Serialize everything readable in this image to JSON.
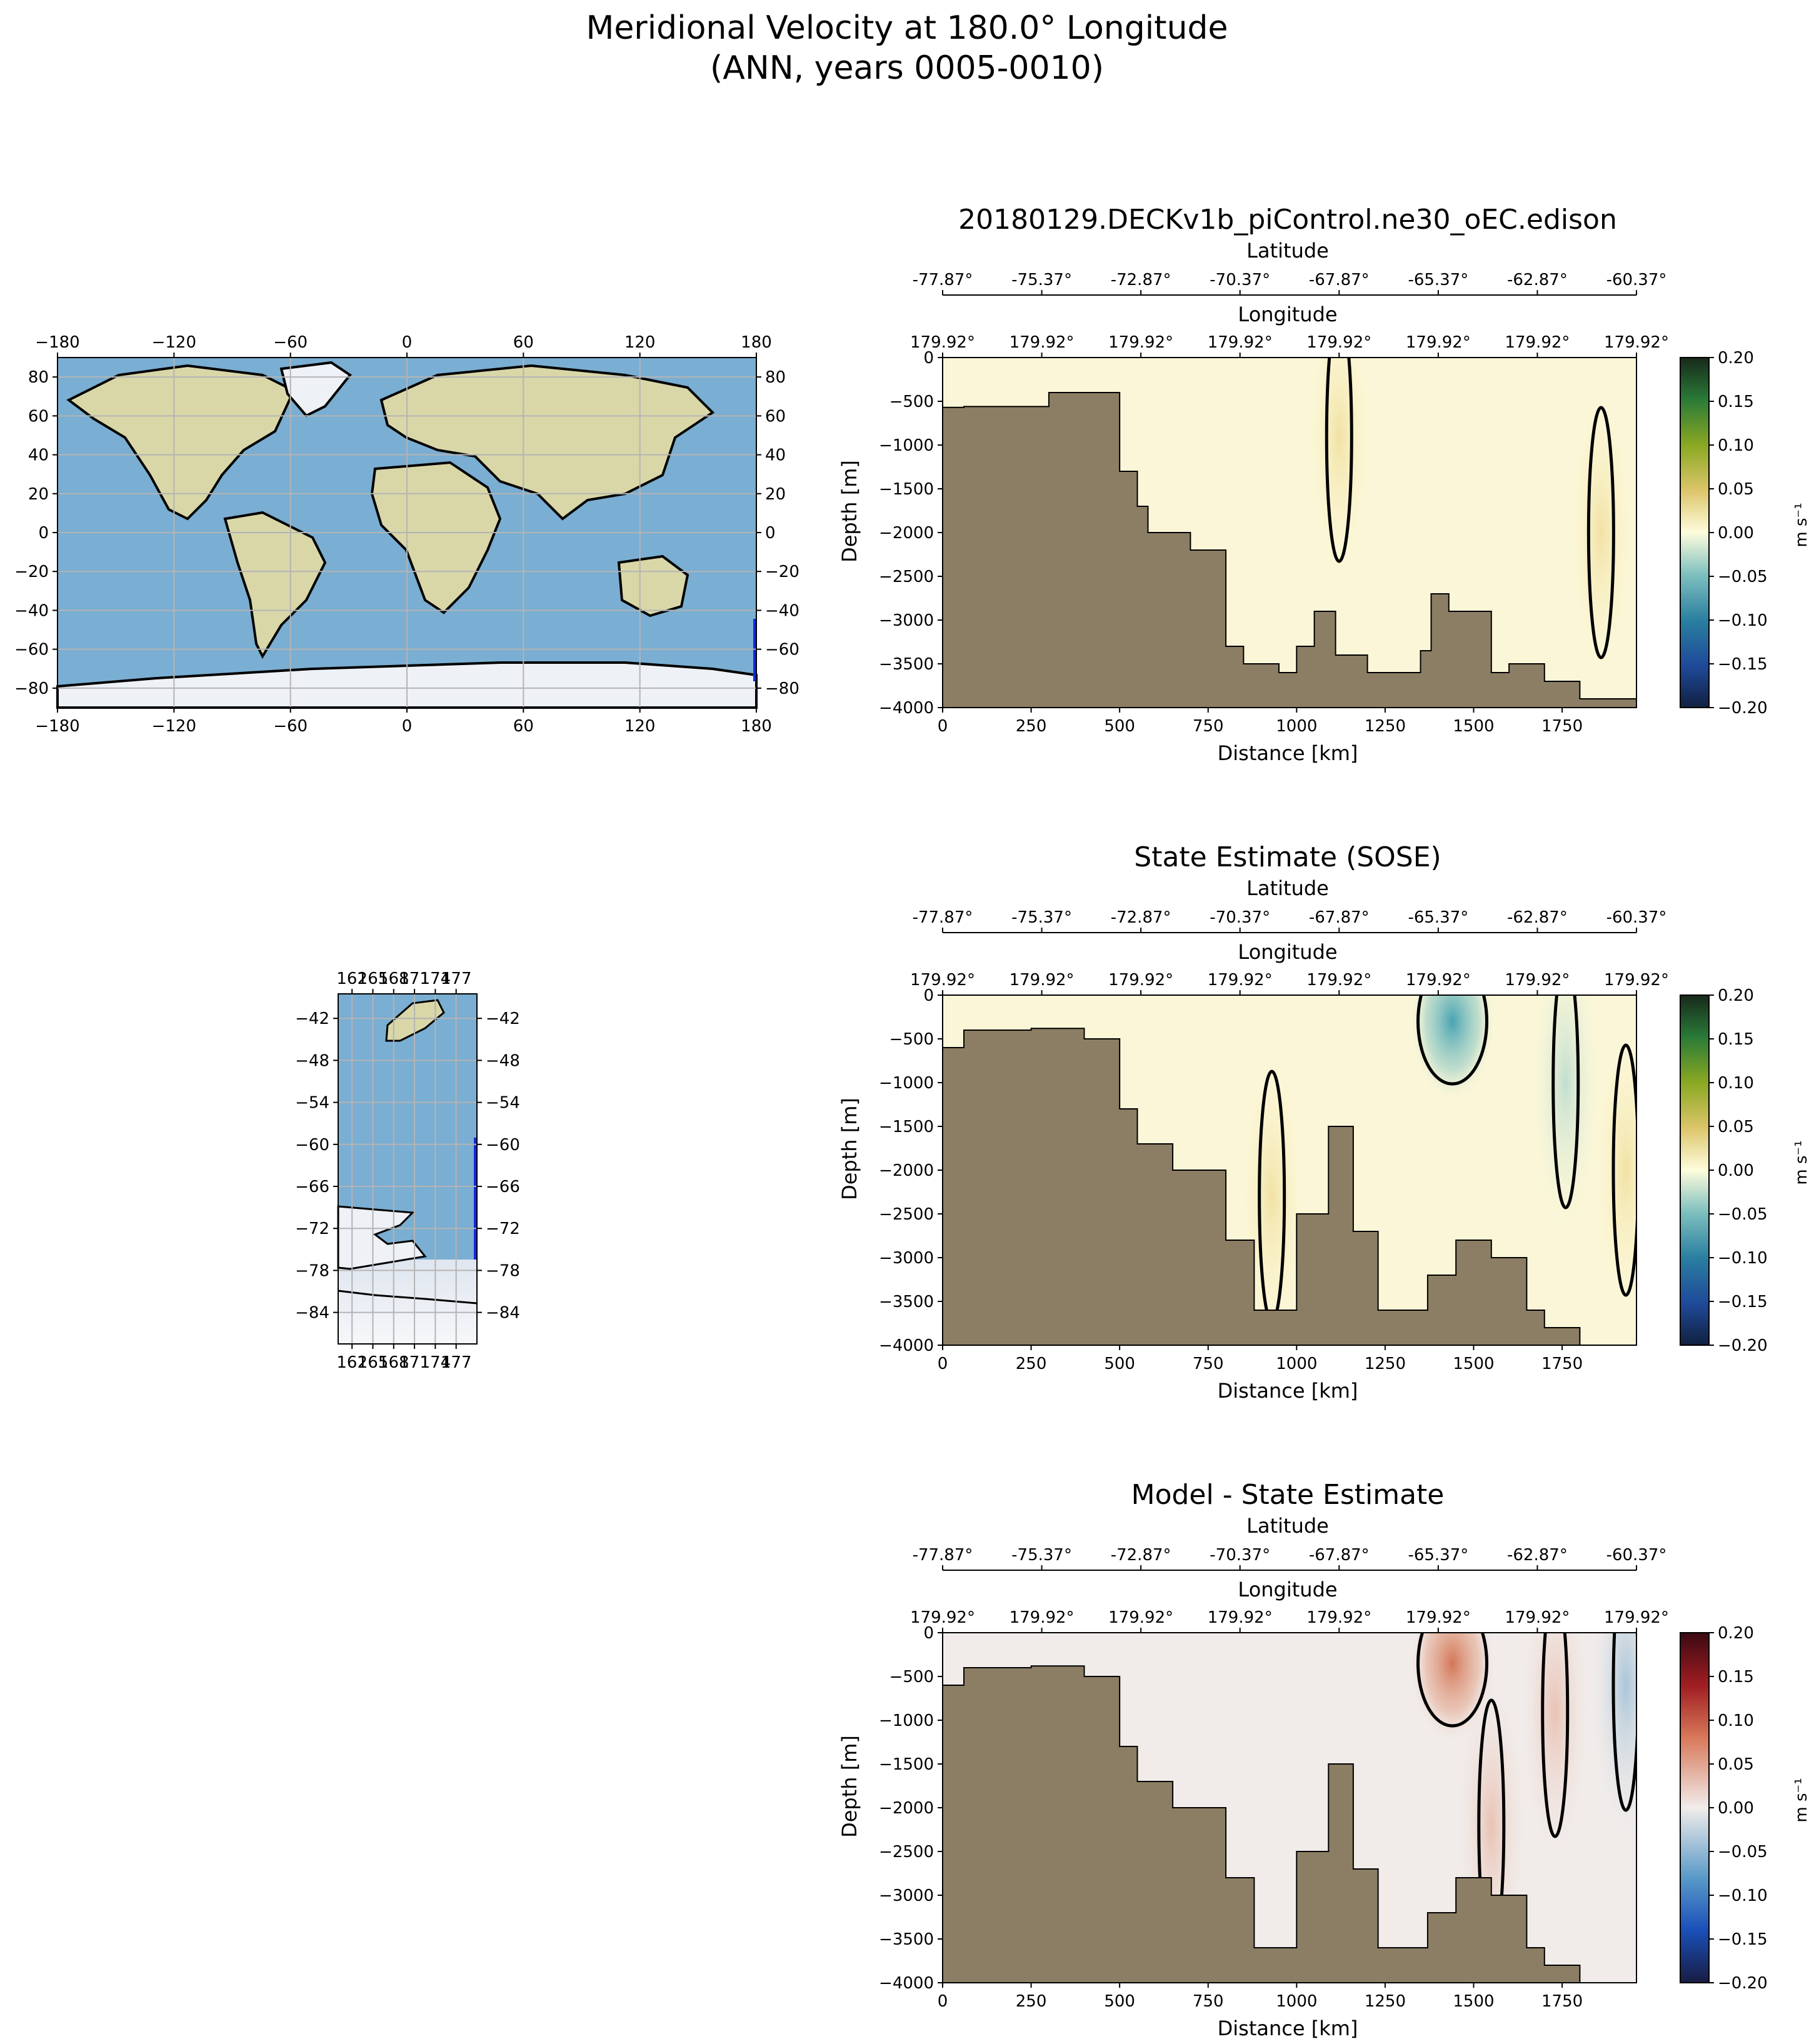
{
  "figure": {
    "title_line1": "Meridional Velocity at 180.0° Longitude",
    "title_line2": "(ANN, years 0005-0010)"
  },
  "colors": {
    "bathymetry": "#8c7e64",
    "ocean": "#7aaed2",
    "land": "#d9d7a8",
    "ice": "#eef1f6",
    "transect": "#1428e6",
    "grid": "#b4b4b4"
  },
  "world_map": {
    "lon_ticks": [
      "−180",
      "−120",
      "−60",
      "0",
      "60",
      "120",
      "180"
    ],
    "lat_ticks": [
      "80",
      "60",
      "40",
      "20",
      "0",
      "−20",
      "−40",
      "−60",
      "−80"
    ]
  },
  "inset_map": {
    "lon_ticks": [
      "162",
      "165",
      "168",
      "171",
      "174",
      "177"
    ],
    "lat_ticks": [
      "−42",
      "−48",
      "−54",
      "−60",
      "−66",
      "−72",
      "−78",
      "−84"
    ]
  },
  "chart_data": [
    {
      "type": "heatmap",
      "title": "20180129.DECKv1b_piControl.ne30_oEC.edison",
      "xlabel": "Distance [km]",
      "ylabel": "Depth [m]",
      "top_axis1_label": "Latitude",
      "top_axis2_label": "Longitude",
      "latitude_ticks": [
        "-77.87°",
        "-75.37°",
        "-72.87°",
        "-70.37°",
        "-67.87°",
        "-65.37°",
        "-62.87°",
        "-60.37°"
      ],
      "longitude_ticks": [
        "179.92°",
        "179.92°",
        "179.92°",
        "179.92°",
        "179.92°",
        "179.92°",
        "179.92°",
        "179.92°"
      ],
      "xlim": [
        0,
        1960
      ],
      "ylim": [
        -4000,
        0
      ],
      "x_ticks": [
        0,
        250,
        500,
        750,
        1000,
        1250,
        1500,
        1750
      ],
      "y_ticks": [
        0,
        -500,
        -1000,
        -1500,
        -2000,
        -2500,
        -3000,
        -3500,
        -4000
      ],
      "colorbar": {
        "label": "m s⁻¹",
        "ticks": [
          "0.20",
          "0.15",
          "0.10",
          "0.05",
          "0.00",
          "−0.05",
          "−0.10",
          "−0.15",
          "−0.20"
        ],
        "colormap": "delta",
        "range": [
          -0.2,
          0.2
        ]
      },
      "contour_level": 0.0,
      "bathymetry_depth_m": [
        [
          0,
          -570
        ],
        [
          60,
          -570
        ],
        [
          60,
          -560
        ],
        [
          300,
          -560
        ],
        [
          300,
          -400
        ],
        [
          500,
          -400
        ],
        [
          500,
          -1300
        ],
        [
          550,
          -1300
        ],
        [
          550,
          -1700
        ],
        [
          580,
          -1700
        ],
        [
          580,
          -2000
        ],
        [
          700,
          -2000
        ],
        [
          700,
          -2200
        ],
        [
          800,
          -2200
        ],
        [
          800,
          -3300
        ],
        [
          850,
          -3300
        ],
        [
          850,
          -3500
        ],
        [
          950,
          -3500
        ],
        [
          950,
          -3600
        ],
        [
          1000,
          -3600
        ],
        [
          1000,
          -3300
        ],
        [
          1050,
          -3300
        ],
        [
          1050,
          -2900
        ],
        [
          1110,
          -2900
        ],
        [
          1110,
          -3400
        ],
        [
          1200,
          -3400
        ],
        [
          1200,
          -3600
        ],
        [
          1350,
          -3600
        ],
        [
          1350,
          -3350
        ],
        [
          1380,
          -3350
        ],
        [
          1380,
          -2700
        ],
        [
          1430,
          -2700
        ],
        [
          1430,
          -2900
        ],
        [
          1550,
          -2900
        ],
        [
          1550,
          -3600
        ],
        [
          1600,
          -3600
        ],
        [
          1600,
          -3500
        ],
        [
          1700,
          -3500
        ],
        [
          1700,
          -3700
        ],
        [
          1800,
          -3700
        ],
        [
          1800,
          -3900
        ],
        [
          1960,
          -3900
        ]
      ],
      "velocity_features": [
        {
          "distance_km": 1120,
          "depth_m": -900,
          "value": 0.0
        },
        {
          "distance_km": 1860,
          "depth_m": -2000,
          "value": 0.03
        }
      ]
    },
    {
      "type": "heatmap",
      "title": "State Estimate (SOSE)",
      "xlabel": "Distance [km]",
      "ylabel": "Depth [m]",
      "top_axis1_label": "Latitude",
      "top_axis2_label": "Longitude",
      "latitude_ticks": [
        "-77.87°",
        "-75.37°",
        "-72.87°",
        "-70.37°",
        "-67.87°",
        "-65.37°",
        "-62.87°",
        "-60.37°"
      ],
      "longitude_ticks": [
        "179.92°",
        "179.92°",
        "179.92°",
        "179.92°",
        "179.92°",
        "179.92°",
        "179.92°",
        "179.92°"
      ],
      "xlim": [
        0,
        1960
      ],
      "ylim": [
        -4000,
        0
      ],
      "x_ticks": [
        0,
        250,
        500,
        750,
        1000,
        1250,
        1500,
        1750
      ],
      "y_ticks": [
        0,
        -500,
        -1000,
        -1500,
        -2000,
        -2500,
        -3000,
        -3500,
        -4000
      ],
      "colorbar": {
        "label": "m s⁻¹",
        "ticks": [
          "0.20",
          "0.15",
          "0.10",
          "0.05",
          "0.00",
          "−0.05",
          "−0.10",
          "−0.15",
          "−0.20"
        ],
        "colormap": "delta",
        "range": [
          -0.2,
          0.2
        ]
      },
      "contour_level": 0.0,
      "bathymetry_depth_m": [
        [
          0,
          -600
        ],
        [
          60,
          -600
        ],
        [
          60,
          -400
        ],
        [
          250,
          -400
        ],
        [
          250,
          -380
        ],
        [
          400,
          -380
        ],
        [
          400,
          -500
        ],
        [
          500,
          -500
        ],
        [
          500,
          -1300
        ],
        [
          550,
          -1300
        ],
        [
          550,
          -1700
        ],
        [
          650,
          -1700
        ],
        [
          650,
          -2000
        ],
        [
          800,
          -2000
        ],
        [
          800,
          -2800
        ],
        [
          880,
          -2800
        ],
        [
          880,
          -3600
        ],
        [
          1000,
          -3600
        ],
        [
          1000,
          -2500
        ],
        [
          1090,
          -2500
        ],
        [
          1090,
          -1500
        ],
        [
          1160,
          -1500
        ],
        [
          1160,
          -2700
        ],
        [
          1230,
          -2700
        ],
        [
          1230,
          -3600
        ],
        [
          1370,
          -3600
        ],
        [
          1370,
          -3200
        ],
        [
          1450,
          -3200
        ],
        [
          1450,
          -2800
        ],
        [
          1550,
          -2800
        ],
        [
          1550,
          -3000
        ],
        [
          1650,
          -3000
        ],
        [
          1650,
          -3600
        ],
        [
          1700,
          -3600
        ],
        [
          1700,
          -3800
        ],
        [
          1800,
          -3800
        ],
        [
          1800,
          -4000
        ],
        [
          1960,
          -4000
        ]
      ],
      "velocity_features": [
        {
          "distance_km": 1440,
          "depth_m": -300,
          "value": -0.08
        },
        {
          "distance_km": 1760,
          "depth_m": -1000,
          "value": -0.04
        },
        {
          "distance_km": 930,
          "depth_m": -2300,
          "value": 0.03
        },
        {
          "distance_km": 1930,
          "depth_m": -2000,
          "value": 0.04
        }
      ]
    },
    {
      "type": "heatmap",
      "title": "Model - State Estimate",
      "xlabel": "Distance [km]",
      "ylabel": "Depth [m]",
      "top_axis1_label": "Latitude",
      "top_axis2_label": "Longitude",
      "latitude_ticks": [
        "-77.87°",
        "-75.37°",
        "-72.87°",
        "-70.37°",
        "-67.87°",
        "-65.37°",
        "-62.87°",
        "-60.37°"
      ],
      "longitude_ticks": [
        "179.92°",
        "179.92°",
        "179.92°",
        "179.92°",
        "179.92°",
        "179.92°",
        "179.92°",
        "179.92°"
      ],
      "xlim": [
        0,
        1960
      ],
      "ylim": [
        -4000,
        0
      ],
      "x_ticks": [
        0,
        250,
        500,
        750,
        1000,
        1250,
        1500,
        1750
      ],
      "y_ticks": [
        0,
        -500,
        -1000,
        -1500,
        -2000,
        -2500,
        -3000,
        -3500,
        -4000
      ],
      "colorbar": {
        "label": "m s⁻¹",
        "ticks": [
          "0.20",
          "0.15",
          "0.10",
          "0.05",
          "0.00",
          "−0.05",
          "−0.10",
          "−0.15",
          "−0.20"
        ],
        "colormap": "balance",
        "range": [
          -0.2,
          0.2
        ]
      },
      "contour_level": 0.0,
      "bathymetry_depth_m": [
        [
          0,
          -600
        ],
        [
          60,
          -600
        ],
        [
          60,
          -400
        ],
        [
          250,
          -400
        ],
        [
          250,
          -380
        ],
        [
          400,
          -380
        ],
        [
          400,
          -500
        ],
        [
          500,
          -500
        ],
        [
          500,
          -1300
        ],
        [
          550,
          -1300
        ],
        [
          550,
          -1700
        ],
        [
          650,
          -1700
        ],
        [
          650,
          -2000
        ],
        [
          800,
          -2000
        ],
        [
          800,
          -2800
        ],
        [
          880,
          -2800
        ],
        [
          880,
          -3600
        ],
        [
          1000,
          -3600
        ],
        [
          1000,
          -2500
        ],
        [
          1090,
          -2500
        ],
        [
          1090,
          -1500
        ],
        [
          1160,
          -1500
        ],
        [
          1160,
          -2700
        ],
        [
          1230,
          -2700
        ],
        [
          1230,
          -3600
        ],
        [
          1370,
          -3600
        ],
        [
          1370,
          -3200
        ],
        [
          1450,
          -3200
        ],
        [
          1450,
          -2800
        ],
        [
          1550,
          -2800
        ],
        [
          1550,
          -3000
        ],
        [
          1650,
          -3000
        ],
        [
          1650,
          -3600
        ],
        [
          1700,
          -3600
        ],
        [
          1700,
          -3800
        ],
        [
          1800,
          -3800
        ],
        [
          1800,
          -4000
        ],
        [
          1960,
          -4000
        ]
      ],
      "velocity_features": [
        {
          "distance_km": 1440,
          "depth_m": -350,
          "value": 0.08
        },
        {
          "distance_km": 1730,
          "depth_m": -900,
          "value": 0.04
        },
        {
          "distance_km": 1550,
          "depth_m": -2200,
          "value": 0.025
        },
        {
          "distance_km": 1930,
          "depth_m": -600,
          "value": -0.03
        }
      ]
    }
  ]
}
